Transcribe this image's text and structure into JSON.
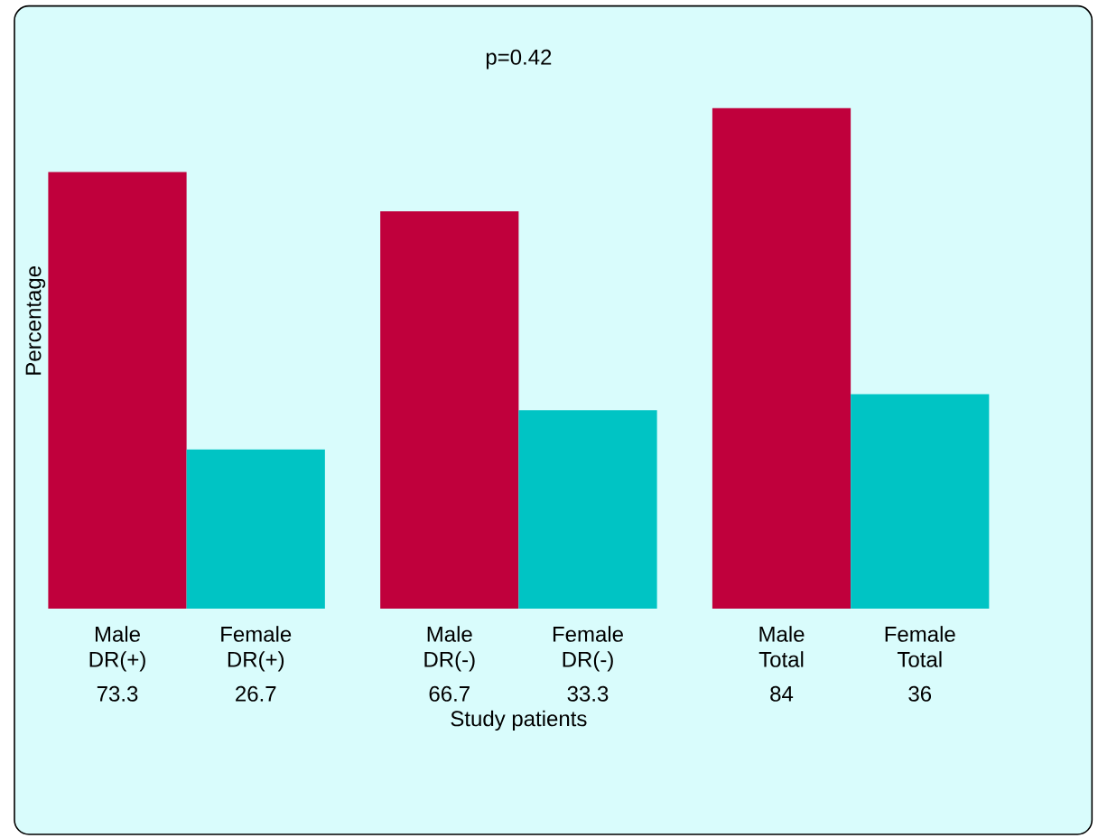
{
  "chart_data": {
    "type": "bar",
    "xlabel": "Study patients",
    "ylabel": "Percentage",
    "categories": [
      "Male DR(+)",
      "Female DR(+)",
      "Male DR(-)",
      "Female DR(-)",
      "Male Total",
      "Female Total"
    ],
    "values": [
      73.3,
      26.7,
      66.7,
      33.3,
      84,
      36
    ],
    "colors": [
      "#c0003c",
      "#00c4c4",
      "#c0003c",
      "#00c4c4",
      "#c0003c",
      "#00c4c4"
    ],
    "data_labels": true,
    "annotations": [
      "p=0.42"
    ]
  }
}
